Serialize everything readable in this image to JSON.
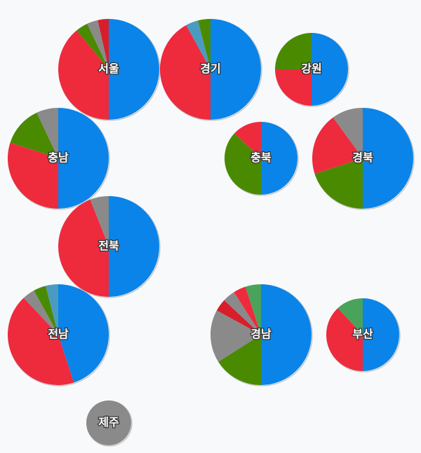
{
  "regions": [
    {
      "label": "서울",
      "values": [
        50,
        39,
        4,
        3.5,
        3.5
      ],
      "colors": [
        "#0a84e8",
        "#ee2a3d",
        "#4a8a00",
        "#8a8a8a",
        "#d61f2a"
      ]
    },
    {
      "label": "경기",
      "values": [
        50,
        42,
        4,
        4
      ],
      "colors": [
        "#0a84e8",
        "#ee2a3d",
        "#4a9bc0",
        "#4a8a00"
      ]
    },
    {
      "label": "강원",
      "values": [
        50,
        25,
        25
      ],
      "colors": [
        "#0a84e8",
        "#ee2a3d",
        "#4a8a00"
      ]
    },
    {
      "label": "충남",
      "values": [
        50,
        30,
        13,
        7
      ],
      "colors": [
        "#0a84e8",
        "#ee2a3d",
        "#4a8a00",
        "#8a8a8a"
      ]
    },
    {
      "label": "충북",
      "values": [
        50,
        37,
        13
      ],
      "colors": [
        "#0a84e8",
        "#4a8a00",
        "#ee2a3d"
      ]
    },
    {
      "label": "경북",
      "values": [
        50,
        20,
        20,
        10
      ],
      "colors": [
        "#0a84e8",
        "#4a8a00",
        "#ee2a3d",
        "#8a8a8a"
      ]
    },
    {
      "label": "전북",
      "values": [
        50,
        44,
        6
      ],
      "colors": [
        "#0a84e8",
        "#ee2a3d",
        "#8a8a8a"
      ]
    },
    {
      "label": "전남",
      "values": [
        45,
        43,
        4,
        4,
        4
      ],
      "colors": [
        "#0a84e8",
        "#ee2a3d",
        "#8a8a8a",
        "#4a8a00",
        "#4a9bc0"
      ]
    },
    {
      "label": "경남",
      "values": [
        50,
        16,
        17,
        4,
        4,
        4,
        5
      ],
      "colors": [
        "#0a84e8",
        "#4a8a00",
        "#8a8a8a",
        "#d61f2a",
        "#8a8a8a",
        "#ee2a3d",
        "#4aa35a"
      ]
    },
    {
      "label": "부산",
      "values": [
        50,
        38,
        12
      ],
      "colors": [
        "#0a84e8",
        "#ee2a3d",
        "#4aa35a"
      ]
    },
    {
      "label": "제주",
      "values": [
        100
      ],
      "colors": [
        "#8a8a8a"
      ]
    }
  ]
}
